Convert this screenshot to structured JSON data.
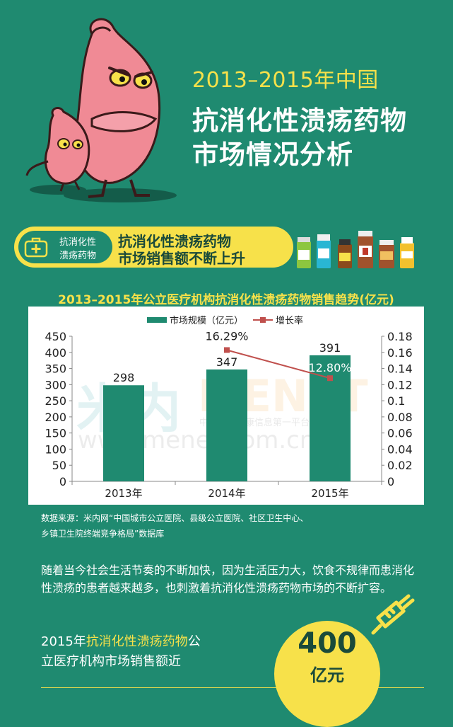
{
  "header": {
    "subtitle": "2013–2015年中国",
    "title_line1": "抗消化性溃疡药物",
    "title_line2": "市场情况分析"
  },
  "banner": {
    "badge_line1": "抗消化性",
    "badge_line2": "溃疡药物",
    "text_line1": "抗消化性溃疡药物",
    "text_line2": "市场销售额不断上升"
  },
  "chart_data": {
    "type": "bar",
    "title": "2013–2015年公立医疗机构抗消化性溃疡药物销售趋势(亿元)",
    "categories": [
      "2013年",
      "2014年",
      "2015年"
    ],
    "series": [
      {
        "name": "市场规模（亿元）",
        "type": "bar",
        "axis": "left",
        "values": [
          298,
          347,
          391
        ],
        "labels": [
          "298",
          "347",
          "391"
        ]
      },
      {
        "name": "增长率",
        "type": "line",
        "axis": "right",
        "values": [
          null,
          0.1629,
          0.128
        ],
        "labels": [
          "",
          "16.29%",
          "12.80%"
        ]
      }
    ],
    "y_left": {
      "ylim": [
        0,
        450
      ],
      "ticks": [
        "0",
        "50",
        "100",
        "150",
        "200",
        "250",
        "300",
        "350",
        "400",
        "450"
      ]
    },
    "y_right": {
      "ylim": [
        0,
        0.18
      ],
      "ticks": [
        "0",
        "0.02",
        "0.04",
        "0.06",
        "0.08",
        "0.1",
        "0.12",
        "0.14",
        "0.16",
        "0.18"
      ]
    },
    "legend": "top",
    "grid": false,
    "watermark": {
      "brand_cn": "米内",
      "brand_en": "MENET",
      "tagline": "中国医药健康信息第一平台",
      "url": "www.menet.com.cn"
    },
    "colors": {
      "bar": "#1f8a70",
      "line": "#c0504d"
    }
  },
  "source": {
    "line1": "数据来源：米内网“中国城市公立医院、县级公立医院、社区卫生中心、",
    "line2": "乡镇卫生院终端竞争格局”数据库"
  },
  "paragraph": "随着当今社会生活节奏的不断加快，因为生活压力大，饮食不规律而患消化性溃疡的患者越来越多，也刺激着抗消化性溃疡药物市场的不断扩容。",
  "bottom": {
    "prefix": "2015年",
    "highlight": "抗消化性溃疡药物",
    "suffix": "公",
    "line2": "立医疗机构市场销售额近",
    "value": "400",
    "unit": "亿元"
  },
  "colors": {
    "background": "#1f8a70",
    "accent": "#f7e14a",
    "text_dark": "#1a4a3a"
  }
}
